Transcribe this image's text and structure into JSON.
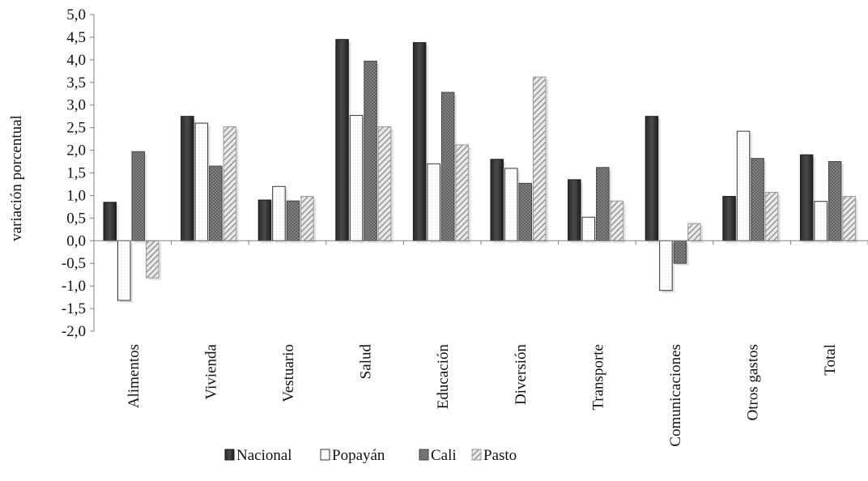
{
  "chart_data": {
    "type": "bar",
    "ylabel": "variación porcentual",
    "xlabel": "",
    "ylim": [
      -2.0,
      5.0
    ],
    "ytick_step": 0.5,
    "ytick_labels": [
      "-2,0",
      "-1,5",
      "-1,0",
      "-0,5",
      "0,0",
      "0,5",
      "1,0",
      "1,5",
      "2,0",
      "2,5",
      "3,0",
      "3,5",
      "4,0",
      "4,5",
      "5,0"
    ],
    "categories": [
      "Alimentos",
      "Vivienda",
      "Vestuario",
      "Salud",
      "Educación",
      "Diversión",
      "Transporte",
      "Comunicaciones",
      "Otros gastos",
      "Total"
    ],
    "series": [
      {
        "name": "Nacional",
        "pattern": "dark",
        "values": [
          0.85,
          2.75,
          0.9,
          4.45,
          4.38,
          1.8,
          1.35,
          2.75,
          0.98,
          1.9
        ]
      },
      {
        "name": "Popayán",
        "pattern": "dots",
        "values": [
          -1.32,
          2.6,
          1.2,
          2.77,
          1.7,
          1.6,
          0.52,
          -1.1,
          2.42,
          0.87
        ]
      },
      {
        "name": "Cali",
        "pattern": "crosshatch",
        "values": [
          1.97,
          1.65,
          0.88,
          3.97,
          3.28,
          1.27,
          1.62,
          -0.5,
          1.82,
          1.75
        ]
      },
      {
        "name": "Pasto",
        "pattern": "diagonal",
        "values": [
          -0.82,
          2.52,
          0.98,
          2.52,
          2.12,
          3.62,
          0.88,
          0.38,
          1.07,
          0.98
        ]
      }
    ],
    "grid": false,
    "legend_position": "bottom"
  }
}
